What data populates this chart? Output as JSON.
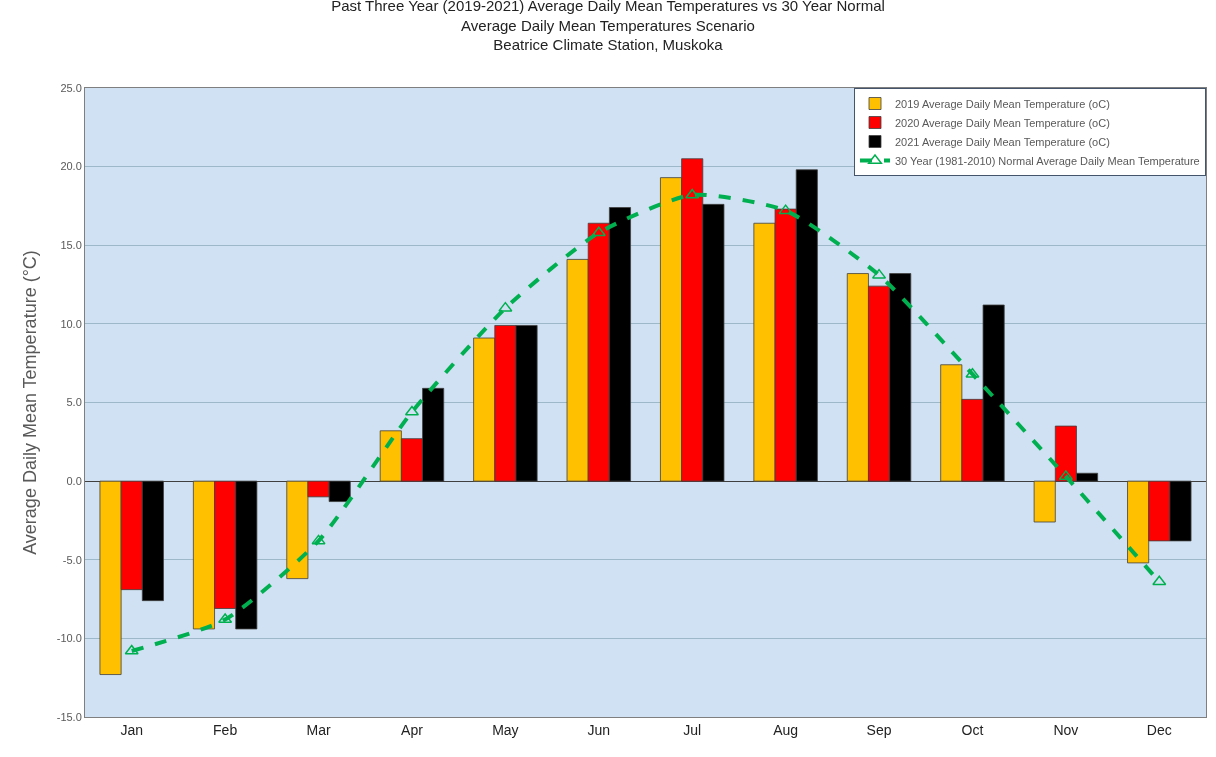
{
  "chart_data": {
    "type": "bar",
    "title": "Past Three Year (2019-2021) Average Daily Mean Temperatures vs 30 Year Normal\nAverage Daily Mean Temperatures Scenario\nBeatrice Climate Station, Muskoka",
    "ylabel": "Average Daily Mean Temperature (°C)",
    "categories": [
      "Jan",
      "Feb",
      "Mar",
      "Apr",
      "May",
      "Jun",
      "Jul",
      "Aug",
      "Sep",
      "Oct",
      "Nov",
      "Dec"
    ],
    "series": [
      {
        "name": "2019 Average Daily Mean Temperature (oC)",
        "color": "#ffc000",
        "values": [
          -12.3,
          -9.4,
          -6.2,
          3.2,
          9.1,
          14.1,
          19.3,
          16.4,
          13.2,
          7.4,
          -2.6,
          -5.2
        ]
      },
      {
        "name": "2020 Average Daily Mean Temperature (oC)",
        "color": "#ff0000",
        "values": [
          -6.9,
          -8.1,
          -1.0,
          2.7,
          9.9,
          16.4,
          20.5,
          17.3,
          12.4,
          5.2,
          3.5,
          -3.8
        ]
      },
      {
        "name": "2021 Average Daily Mean Temperature (oC)",
        "color": "#000000",
        "values": [
          -7.6,
          -9.4,
          -1.3,
          5.9,
          9.9,
          17.4,
          17.6,
          19.8,
          13.2,
          11.2,
          0.5,
          -3.8
        ]
      },
      {
        "name": "30 Year (1981-2010) Normal Average Daily Mean Temperature",
        "type": "line",
        "color": "#00b050",
        "marker": "triangle",
        "line_style": "dashed",
        "values": [
          -10.8,
          -8.8,
          -3.8,
          4.4,
          11.0,
          15.8,
          18.2,
          17.2,
          13.1,
          6.8,
          0.3,
          -6.4
        ]
      }
    ],
    "ylim": [
      -15,
      25
    ],
    "yticks": [
      {
        "value": -15,
        "label": "-15.0"
      },
      {
        "value": -10,
        "label": "-10.0"
      },
      {
        "value": -5,
        "label": "-5.0"
      },
      {
        "value": 0,
        "label": "0.0"
      },
      {
        "value": 5,
        "label": "5.0"
      },
      {
        "value": 10,
        "label": "10.0"
      },
      {
        "value": 15,
        "label": "15.0"
      },
      {
        "value": 20,
        "label": "20.0"
      },
      {
        "value": 25,
        "label": "25.0"
      }
    ],
    "grid": "y",
    "legend": "top right"
  }
}
